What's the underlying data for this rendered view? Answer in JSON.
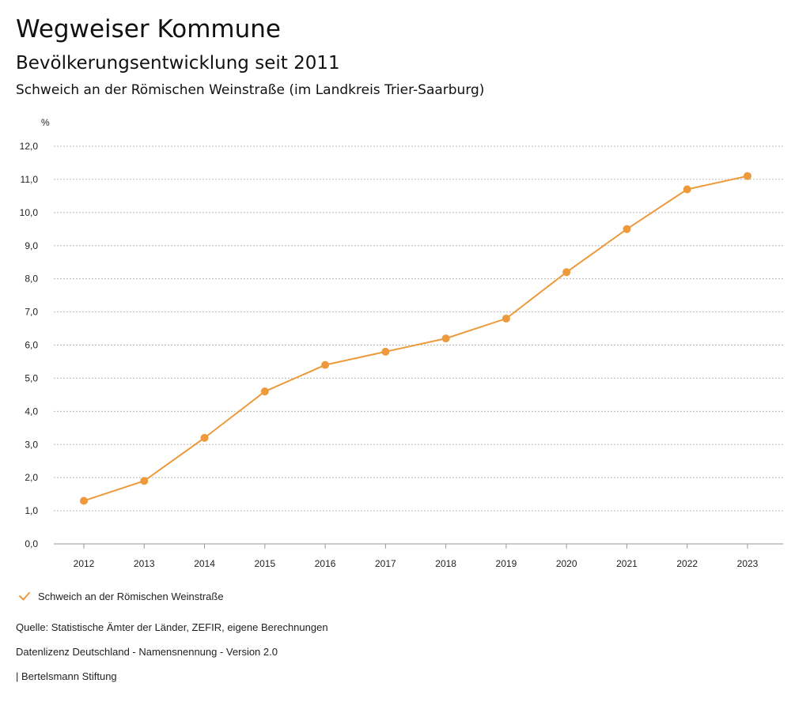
{
  "header": {
    "app_title": "Wegweiser Kommune",
    "subtitle": "Bevölkerungsentwicklung seit 2011",
    "municipality": "Schweich an der Römischen Weinstraße (im Landkreis Trier-Saarburg)"
  },
  "chart_data": {
    "type": "line",
    "title": "Bevölkerungsentwicklung seit 2011",
    "ylabel": "%",
    "xlabel": "",
    "categories": [
      "2012",
      "2013",
      "2014",
      "2015",
      "2016",
      "2017",
      "2018",
      "2019",
      "2020",
      "2021",
      "2022",
      "2023"
    ],
    "series": [
      {
        "name": "Schweich an der Römischen Weinstraße",
        "values": [
          1.3,
          1.9,
          3.2,
          4.6,
          5.4,
          5.8,
          6.2,
          6.8,
          8.2,
          9.5,
          10.7,
          11.1
        ],
        "color": "#ec9a3b"
      }
    ],
    "ylim": [
      0,
      12
    ],
    "yticks": [
      "0,0",
      "1,0",
      "2,0",
      "3,0",
      "4,0",
      "5,0",
      "6,0",
      "7,0",
      "8,0",
      "9,0",
      "10,0",
      "11,0",
      "12,0"
    ],
    "grid": true,
    "legend": "bottom-left"
  },
  "legend": {
    "label": "Schweich an der Römischen Weinstraße",
    "icon": "check-icon",
    "color": "#ec9a3b"
  },
  "footer": {
    "source": "Quelle: Statistische Ämter der Länder, ZEFIR, eigene Berechnungen",
    "license": "Datenlizenz Deutschland - Namensnennung - Version 2.0",
    "brand": "| Bertelsmann Stiftung"
  }
}
